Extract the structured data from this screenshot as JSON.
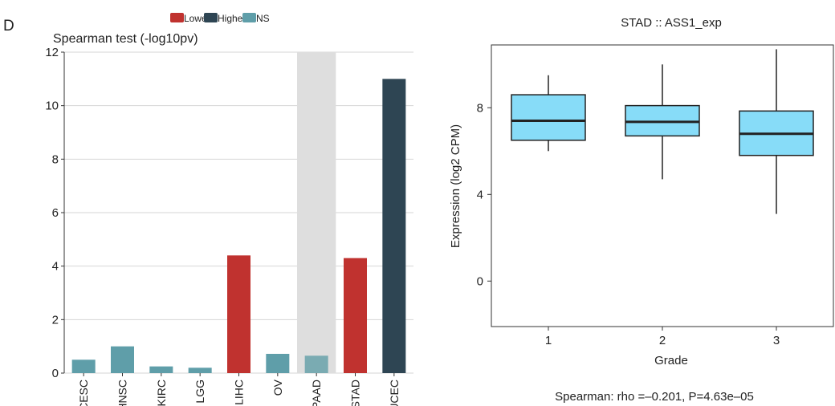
{
  "panel_label": "D",
  "chart_data": [
    {
      "type": "bar",
      "title": "Spearman test (-log10pv)",
      "xlabel": "",
      "ylabel": "",
      "ylim": [
        0,
        12
      ],
      "yticks": [
        0,
        2,
        4,
        6,
        8,
        10,
        12
      ],
      "grid": true,
      "legend_position": "top",
      "legend": [
        {
          "name": "Lower",
          "color": "#c0322f"
        },
        {
          "name": "Higher",
          "color": "#2e4553"
        },
        {
          "name": "NS",
          "color": "#5f9ea9"
        }
      ],
      "highlight_category": "PAAD",
      "categories": [
        "CESC",
        "HNSC",
        "KIRC",
        "LGG",
        "LIHC",
        "OV",
        "PAAD",
        "STAD",
        "UCEC"
      ],
      "values": [
        0.5,
        1.0,
        0.25,
        0.2,
        4.4,
        0.72,
        0.65,
        4.3,
        11.0
      ],
      "groups": [
        "NS",
        "NS",
        "NS",
        "NS",
        "Lower",
        "NS",
        "NS",
        "Lower",
        "Higher"
      ]
    },
    {
      "type": "box",
      "title": "STAD :: ASS1_exp",
      "xlabel": "Grade",
      "ylabel": "Expression (log2 CPM)",
      "categories": [
        "1",
        "2",
        "3"
      ],
      "yticks": [
        0,
        4,
        8
      ],
      "ylim": [
        -2.1,
        10.9
      ],
      "box_color": "#87dcf8",
      "boxes": [
        {
          "category": "1",
          "whisker_low": 6.0,
          "q1": 6.5,
          "median": 7.4,
          "q3": 8.6,
          "whisker_high": 9.5
        },
        {
          "category": "2",
          "whisker_low": 4.7,
          "q1": 6.7,
          "median": 7.35,
          "q3": 8.1,
          "whisker_high": 10.0
        },
        {
          "category": "3",
          "whisker_low": 3.1,
          "q1": 5.8,
          "median": 6.8,
          "q3": 7.85,
          "whisker_high": 10.7
        }
      ],
      "caption": "Spearman: rho =–0.201, P=4.63e–05"
    }
  ]
}
